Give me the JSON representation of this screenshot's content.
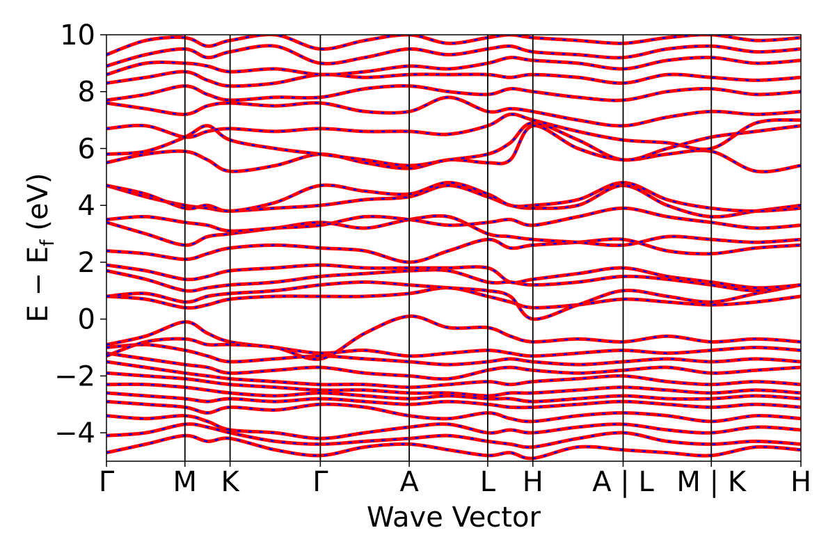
{
  "chart_data": {
    "type": "line",
    "xlabel": "Wave Vector",
    "ylabel_main": "E − E",
    "ylabel_sub": "f",
    "ylabel_unit": " (eV)",
    "ylim": [
      -5,
      10
    ],
    "yticks": [
      -4,
      -2,
      0,
      2,
      4,
      6,
      8,
      10
    ],
    "ytick_labels": [
      "−4",
      "−2",
      "0",
      "2",
      "4",
      "6",
      "8",
      "10"
    ],
    "grid": false,
    "segments": [
      {
        "from": "Γ",
        "to": "M",
        "x": [
          0.0,
          0.113
        ]
      },
      {
        "from": "M",
        "to": "K",
        "x": [
          0.113,
          0.178
        ]
      },
      {
        "from": "K",
        "to": "Γ",
        "x": [
          0.178,
          0.308
        ]
      },
      {
        "from": "Γ",
        "to": "A",
        "x": [
          0.308,
          0.436
        ]
      },
      {
        "from": "A",
        "to": "L",
        "x": [
          0.436,
          0.549
        ]
      },
      {
        "from": "L",
        "to": "H",
        "x": [
          0.549,
          0.614
        ]
      },
      {
        "from": "H",
        "to": "A",
        "x": [
          0.614,
          0.744
        ]
      },
      {
        "from": "L",
        "to": "M",
        "x": [
          0.744,
          0.871
        ]
      },
      {
        "from": "K",
        "to": "H",
        "x": [
          0.871,
          1.0
        ]
      }
    ],
    "kpoint_labels": [
      {
        "label": "Γ",
        "x": 0.0
      },
      {
        "label": "M",
        "x": 0.113
      },
      {
        "label": "K",
        "x": 0.178
      },
      {
        "label": "Γ",
        "x": 0.308
      },
      {
        "label": "A",
        "x": 0.436
      },
      {
        "label": "L",
        "x": 0.549
      },
      {
        "label": "H",
        "x": 0.614
      },
      {
        "label": "A | L",
        "x": 0.744
      },
      {
        "label": "M | K",
        "x": 0.871
      },
      {
        "label": "H",
        "x": 1.0
      }
    ],
    "series": [
      {
        "color": "#ff0000",
        "style": "solid"
      },
      {
        "color": "#0000ff",
        "style": "dashed"
      }
    ],
    "bands": [
      [
        -4.7,
        -4.4,
        -4.1,
        -4.3,
        -4.2,
        -4.6,
        -4.8,
        -4.5,
        -4.4,
        -4.6,
        -4.8,
        -4.7,
        -4.9,
        -4.5,
        -4.6,
        -4.7,
        -4.8,
        -4.5,
        -4.6
      ],
      [
        -4.1,
        -4.0,
        -3.7,
        -3.8,
        -4.0,
        -4.3,
        -4.4,
        -4.3,
        -4.2,
        -4.1,
        -4.3,
        -4.4,
        -4.5,
        -4.2,
        -4.0,
        -4.3,
        -4.4,
        -4.3,
        -4.4
      ],
      [
        -3.4,
        -3.5,
        -3.4,
        -3.6,
        -3.9,
        -4.0,
        -4.2,
        -4.0,
        -3.8,
        -3.7,
        -4.0,
        -3.9,
        -4.0,
        -3.8,
        -3.7,
        -3.9,
        -4.0,
        -3.8,
        -3.9
      ],
      [
        -2.9,
        -3.0,
        -3.1,
        -3.3,
        -3.1,
        -3.2,
        -3.0,
        -3.1,
        -3.4,
        -3.5,
        -3.3,
        -3.5,
        -3.6,
        -3.4,
        -3.3,
        -3.4,
        -3.6,
        -3.4,
        -3.5
      ],
      [
        -2.6,
        -2.7,
        -2.8,
        -2.9,
        -2.8,
        -2.9,
        -2.8,
        -2.9,
        -3.0,
        -2.9,
        -3.0,
        -3.1,
        -3.1,
        -3.0,
        -2.9,
        -3.0,
        -3.1,
        -3.0,
        -3.1
      ],
      [
        -2.3,
        -2.3,
        -2.4,
        -2.5,
        -2.6,
        -2.7,
        -2.6,
        -2.7,
        -2.8,
        -2.7,
        -2.8,
        -2.8,
        -2.9,
        -2.8,
        -2.7,
        -2.8,
        -2.8,
        -2.7,
        -2.8
      ],
      [
        -1.9,
        -2.0,
        -2.1,
        -2.2,
        -2.3,
        -2.4,
        -2.5,
        -2.5,
        -2.6,
        -2.6,
        -2.7,
        -2.6,
        -2.6,
        -2.5,
        -2.4,
        -2.5,
        -2.6,
        -2.5,
        -2.6
      ],
      [
        -1.5,
        -1.7,
        -1.9,
        -2.0,
        -2.1,
        -2.2,
        -2.3,
        -2.3,
        -2.4,
        -2.3,
        -2.2,
        -2.3,
        -2.2,
        -2.1,
        -2.0,
        -2.2,
        -2.3,
        -2.2,
        -2.3
      ],
      [
        -1.2,
        -1.4,
        -1.6,
        -1.7,
        -1.9,
        -1.8,
        -1.7,
        -1.9,
        -2.0,
        -2.1,
        -1.8,
        -1.7,
        -1.8,
        -1.9,
        -1.8,
        -1.7,
        -1.9,
        -1.8,
        -1.7
      ],
      [
        -1.0,
        -0.9,
        -1.1,
        -1.3,
        -1.5,
        -1.4,
        -1.3,
        -1.4,
        -1.5,
        -1.6,
        -1.5,
        -1.4,
        -1.5,
        -1.6,
        -1.5,
        -1.4,
        -1.5,
        -1.4,
        -1.5
      ],
      [
        -0.9,
        -0.6,
        -0.1,
        -0.5,
        -0.8,
        -1.0,
        -1.2,
        -1.1,
        -1.3,
        -1.2,
        -1.1,
        -1.2,
        -1.3,
        -1.2,
        -1.1,
        -1.2,
        -1.1,
        -1.0,
        -1.1
      ],
      [
        -1.3,
        -0.8,
        -0.7,
        -0.9,
        -0.9,
        -1.0,
        -1.4,
        -0.5,
        0.1,
        -0.3,
        -0.3,
        -0.6,
        -0.8,
        -0.7,
        -0.8,
        -0.6,
        -0.8,
        -0.7,
        -0.8
      ],
      [
        0.8,
        0.7,
        0.4,
        0.5,
        0.7,
        0.8,
        0.8,
        0.8,
        0.9,
        1.1,
        0.8,
        0.6,
        0.4,
        0.5,
        0.7,
        0.6,
        0.5,
        0.6,
        0.8
      ],
      [
        0.8,
        0.9,
        0.6,
        0.8,
        0.9,
        1.0,
        1.2,
        1.3,
        1.2,
        1.1,
        1.0,
        0.8,
        0.0,
        0.5,
        1.0,
        0.8,
        0.6,
        0.9,
        1.2
      ],
      [
        1.7,
        1.4,
        1.0,
        1.1,
        1.2,
        1.3,
        1.5,
        1.6,
        1.7,
        1.7,
        1.3,
        1.3,
        1.2,
        1.3,
        1.5,
        1.4,
        1.2,
        1.0,
        1.2
      ],
      [
        1.9,
        1.7,
        1.4,
        1.5,
        1.7,
        1.8,
        1.9,
        1.8,
        1.8,
        1.8,
        1.8,
        1.3,
        1.4,
        1.6,
        1.8,
        1.5,
        1.3,
        1.1,
        1.2
      ],
      [
        2.4,
        2.3,
        2.1,
        2.3,
        2.5,
        2.6,
        2.5,
        2.4,
        2.0,
        2.4,
        2.8,
        2.5,
        2.6,
        2.7,
        2.8,
        2.4,
        2.3,
        2.5,
        2.6
      ],
      [
        3.4,
        3.0,
        2.6,
        2.9,
        3.0,
        3.2,
        3.4,
        3.2,
        3.5,
        3.6,
        3.0,
        2.9,
        2.8,
        2.7,
        2.6,
        2.9,
        2.8,
        2.7,
        2.8
      ],
      [
        3.5,
        3.6,
        3.4,
        3.3,
        3.1,
        3.2,
        3.3,
        3.6,
        3.5,
        3.3,
        3.4,
        3.5,
        3.3,
        3.6,
        3.9,
        3.6,
        3.4,
        3.2,
        3.3
      ],
      [
        4.7,
        4.3,
        4.0,
        3.9,
        3.8,
        3.9,
        4.0,
        4.2,
        4.3,
        4.7,
        4.3,
        4.0,
        3.9,
        4.0,
        4.7,
        4.0,
        3.6,
        3.8,
        4.0
      ],
      [
        4.7,
        4.4,
        3.9,
        4.0,
        3.8,
        4.1,
        4.7,
        4.5,
        4.4,
        4.8,
        4.4,
        4.0,
        4.0,
        4.2,
        4.8,
        4.2,
        3.9,
        3.8,
        3.9
      ],
      [
        5.5,
        5.8,
        5.9,
        5.6,
        5.2,
        5.4,
        5.8,
        5.5,
        5.3,
        5.6,
        5.5,
        5.6,
        6.8,
        6.0,
        5.6,
        5.8,
        5.9,
        5.2,
        5.4
      ],
      [
        5.8,
        5.9,
        6.4,
        6.8,
        6.3,
        6.0,
        5.8,
        5.6,
        5.4,
        5.6,
        5.8,
        6.2,
        6.9,
        6.3,
        5.6,
        6.0,
        6.4,
        6.6,
        6.8
      ],
      [
        6.7,
        6.8,
        6.4,
        6.6,
        6.7,
        6.6,
        6.7,
        6.6,
        6.6,
        6.5,
        6.8,
        7.2,
        7.0,
        6.6,
        6.3,
        6.2,
        6.0,
        6.9,
        7.0
      ],
      [
        7.6,
        7.4,
        7.2,
        7.5,
        7.6,
        7.5,
        7.6,
        7.3,
        7.3,
        7.8,
        7.3,
        7.4,
        7.3,
        7.0,
        6.8,
        7.1,
        7.3,
        7.2,
        7.3
      ],
      [
        7.7,
        7.9,
        8.2,
        7.9,
        7.7,
        7.8,
        7.8,
        8.1,
        8.2,
        8.0,
        7.9,
        8.1,
        8.0,
        7.8,
        7.7,
        8.0,
        8.1,
        7.9,
        8.0
      ],
      [
        8.3,
        8.5,
        8.7,
        8.4,
        8.2,
        8.3,
        8.6,
        8.5,
        8.6,
        8.6,
        8.6,
        8.5,
        8.6,
        8.5,
        8.3,
        8.6,
        8.5,
        8.4,
        8.5
      ],
      [
        8.6,
        9.0,
        9.0,
        8.9,
        8.7,
        8.8,
        8.6,
        8.7,
        8.9,
        8.8,
        9.0,
        9.2,
        9.1,
        9.0,
        8.8,
        9.1,
        9.2,
        9.0,
        9.1
      ],
      [
        8.9,
        9.3,
        9.5,
        9.2,
        9.4,
        9.6,
        9.0,
        9.2,
        9.5,
        9.3,
        9.5,
        9.6,
        9.4,
        9.3,
        9.2,
        9.5,
        9.6,
        9.4,
        9.5
      ],
      [
        9.3,
        9.8,
        9.9,
        9.6,
        9.8,
        10.0,
        9.5,
        9.8,
        10.0,
        9.7,
        9.9,
        10.0,
        9.9,
        9.8,
        9.7,
        9.9,
        10.0,
        9.8,
        9.9
      ]
    ]
  }
}
